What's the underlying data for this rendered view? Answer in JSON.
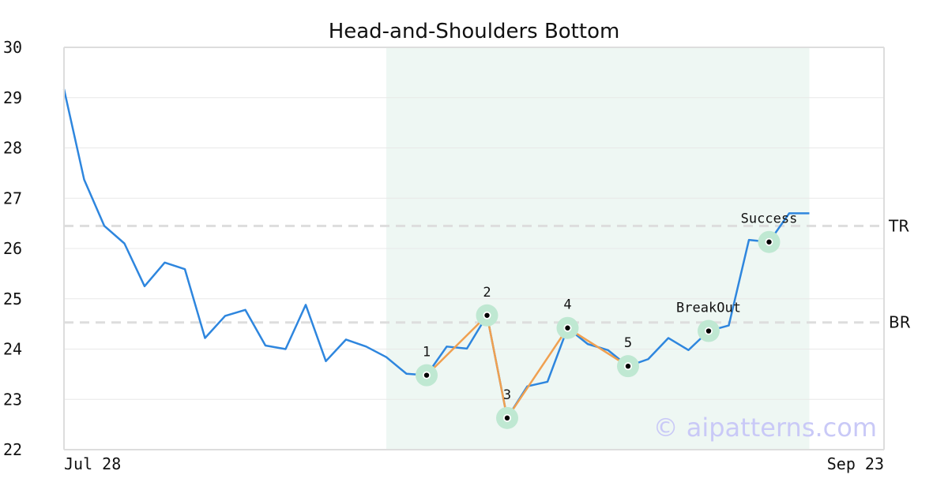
{
  "chart_data": {
    "type": "line",
    "title": "Head-and-Shoulders Bottom",
    "ylim": [
      22,
      30
    ],
    "y_ticks": [
      22,
      23,
      24,
      25,
      26,
      27,
      28,
      29,
      30
    ],
    "x_tick_labels": [
      "Jul 28",
      "Sep 23"
    ],
    "grid": "horizontal",
    "series": [
      {
        "color": "#2e86de",
        "values": [
          29.17,
          27.37,
          26.45,
          26.1,
          25.25,
          25.72,
          25.59,
          24.22,
          24.66,
          24.78,
          24.07,
          24.0,
          24.88,
          23.76,
          24.19,
          24.05,
          23.84,
          23.51,
          23.48,
          24.05,
          24.01,
          24.67,
          22.63,
          23.26,
          23.35,
          24.42,
          24.1,
          23.98,
          23.66,
          23.8,
          24.22,
          23.98,
          24.36,
          24.47,
          26.17,
          26.13,
          26.7,
          26.7
        ]
      }
    ],
    "pattern_highlight": {
      "from_index": 16,
      "to_index": 37,
      "color": "#eef7f3"
    },
    "pattern_line": {
      "color": "#f0a050",
      "points": [
        {
          "index": 18,
          "value": 23.48
        },
        {
          "index": 21,
          "value": 24.67
        },
        {
          "index": 22,
          "value": 22.63
        },
        {
          "index": 25,
          "value": 24.42
        },
        {
          "index": 28,
          "value": 23.66
        }
      ]
    },
    "markers": [
      {
        "index": 18,
        "value": 23.48,
        "label": "1"
      },
      {
        "index": 21,
        "value": 24.67,
        "label": "2"
      },
      {
        "index": 22,
        "value": 22.63,
        "label": "3"
      },
      {
        "index": 25,
        "value": 24.42,
        "label": "4"
      },
      {
        "index": 28,
        "value": 23.66,
        "label": "5"
      },
      {
        "index": 32,
        "value": 24.36,
        "label": "BreakOut"
      },
      {
        "index": 35,
        "value": 26.13,
        "label": "Success"
      }
    ],
    "levels": [
      {
        "label": "TR",
        "value": 26.45
      },
      {
        "label": "BR",
        "value": 24.53
      }
    ]
  },
  "watermark": "© aipatterns.com",
  "colors": {
    "axis": "#dddddd",
    "grid": "#e8e8e8",
    "marker_halo": "#bfe8d2",
    "level_line": "#dddddd"
  }
}
